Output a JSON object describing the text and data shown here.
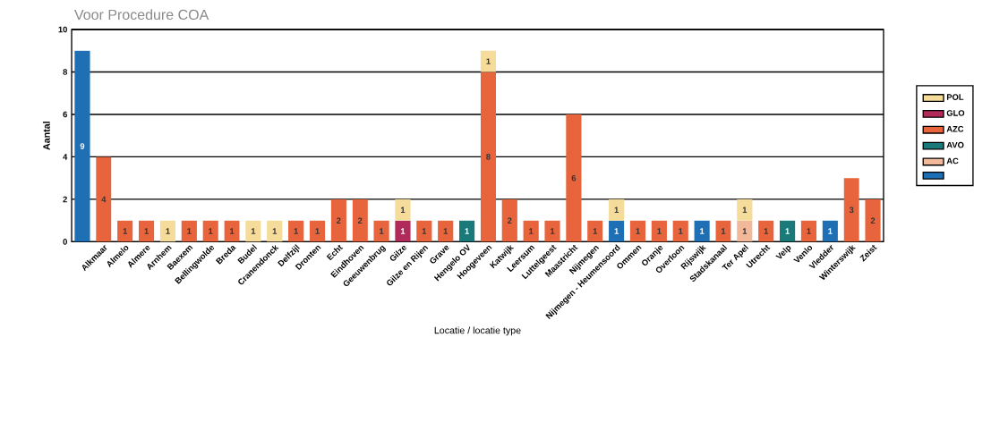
{
  "chart_data": {
    "type": "bar",
    "stacked": true,
    "title": "Voor Procedure COA",
    "xlabel": "Locatie / locatie type",
    "ylabel": "Aantal",
    "categories": [
      null,
      "Alkmaar",
      "Almelo",
      "Almere",
      "Arnhem",
      "Baexem",
      "Bellingwolde",
      "Breda",
      "Budel",
      "Cranendonck",
      "Delfzijl",
      "Dronten",
      "Echt",
      "Eindhoven",
      "Geeuwenbrug",
      "Gilze",
      "Gilze en Rijen",
      "Grave",
      "Hengelo OV",
      "Hoogeveen",
      "Katwijk",
      "Leersum",
      "Luttelgeest",
      "Maastricht",
      "Nijmegen",
      "Nijmegen - Heumensoord",
      "Ommen",
      "Oranje",
      "Overloon",
      "Rijswijk",
      "Stadskanaal",
      "Ter Apel",
      "Utrecht",
      "Velp",
      "Venlo",
      "Vledder",
      "Winterswijk",
      "Zeist"
    ],
    "series": [
      {
        "color": "#1f6fb5",
        "values": [
          9,
          null,
          null,
          null,
          null,
          null,
          null,
          null,
          null,
          null,
          null,
          null,
          null,
          null,
          null,
          null,
          null,
          null,
          null,
          null,
          null,
          null,
          null,
          null,
          null,
          1,
          null,
          null,
          null,
          1,
          null,
          null,
          null,
          null,
          null,
          1,
          null,
          null
        ]
      },
      {
        "name": "AC",
        "color": "#f2b89a",
        "values": [
          null,
          null,
          null,
          null,
          null,
          null,
          null,
          null,
          null,
          null,
          null,
          null,
          null,
          null,
          null,
          null,
          null,
          null,
          null,
          null,
          null,
          null,
          null,
          null,
          null,
          null,
          null,
          null,
          null,
          null,
          null,
          1,
          null,
          null,
          null,
          null,
          null,
          null
        ]
      },
      {
        "name": "AVO",
        "color": "#1a7a7a",
        "values": [
          null,
          null,
          null,
          null,
          null,
          null,
          null,
          null,
          null,
          null,
          null,
          null,
          null,
          null,
          null,
          null,
          null,
          null,
          1,
          null,
          null,
          null,
          null,
          null,
          null,
          null,
          null,
          null,
          null,
          null,
          null,
          null,
          null,
          1,
          null,
          null,
          null,
          null
        ]
      },
      {
        "name": "AZC",
        "color": "#e8643c",
        "values": [
          null,
          4,
          1,
          1,
          null,
          1,
          1,
          1,
          null,
          null,
          1,
          1,
          2,
          2,
          1,
          null,
          1,
          1,
          null,
          8,
          2,
          1,
          1,
          6,
          1,
          null,
          1,
          1,
          1,
          null,
          1,
          null,
          1,
          null,
          1,
          null,
          3,
          2
        ]
      },
      {
        "name": "GLO",
        "color": "#b02a5a",
        "values": [
          null,
          null,
          null,
          null,
          null,
          null,
          null,
          null,
          null,
          null,
          null,
          null,
          null,
          null,
          null,
          1,
          null,
          null,
          null,
          null,
          null,
          null,
          null,
          null,
          null,
          null,
          null,
          null,
          null,
          null,
          null,
          null,
          null,
          null,
          null,
          null,
          null,
          null
        ]
      },
      {
        "name": "POL",
        "color": "#f5dc9a",
        "values": [
          null,
          null,
          null,
          null,
          1,
          null,
          null,
          null,
          1,
          1,
          null,
          null,
          null,
          null,
          null,
          1,
          null,
          null,
          null,
          1,
          null,
          null,
          null,
          null,
          null,
          1,
          null,
          null,
          null,
          null,
          null,
          1,
          null,
          null,
          null,
          null,
          null,
          null
        ]
      }
    ],
    "ylim": [
      0,
      10
    ],
    "yticks": [
      0,
      2,
      4,
      6,
      8,
      10
    ],
    "grid": "y",
    "legend": "right",
    "data_labels": true
  }
}
